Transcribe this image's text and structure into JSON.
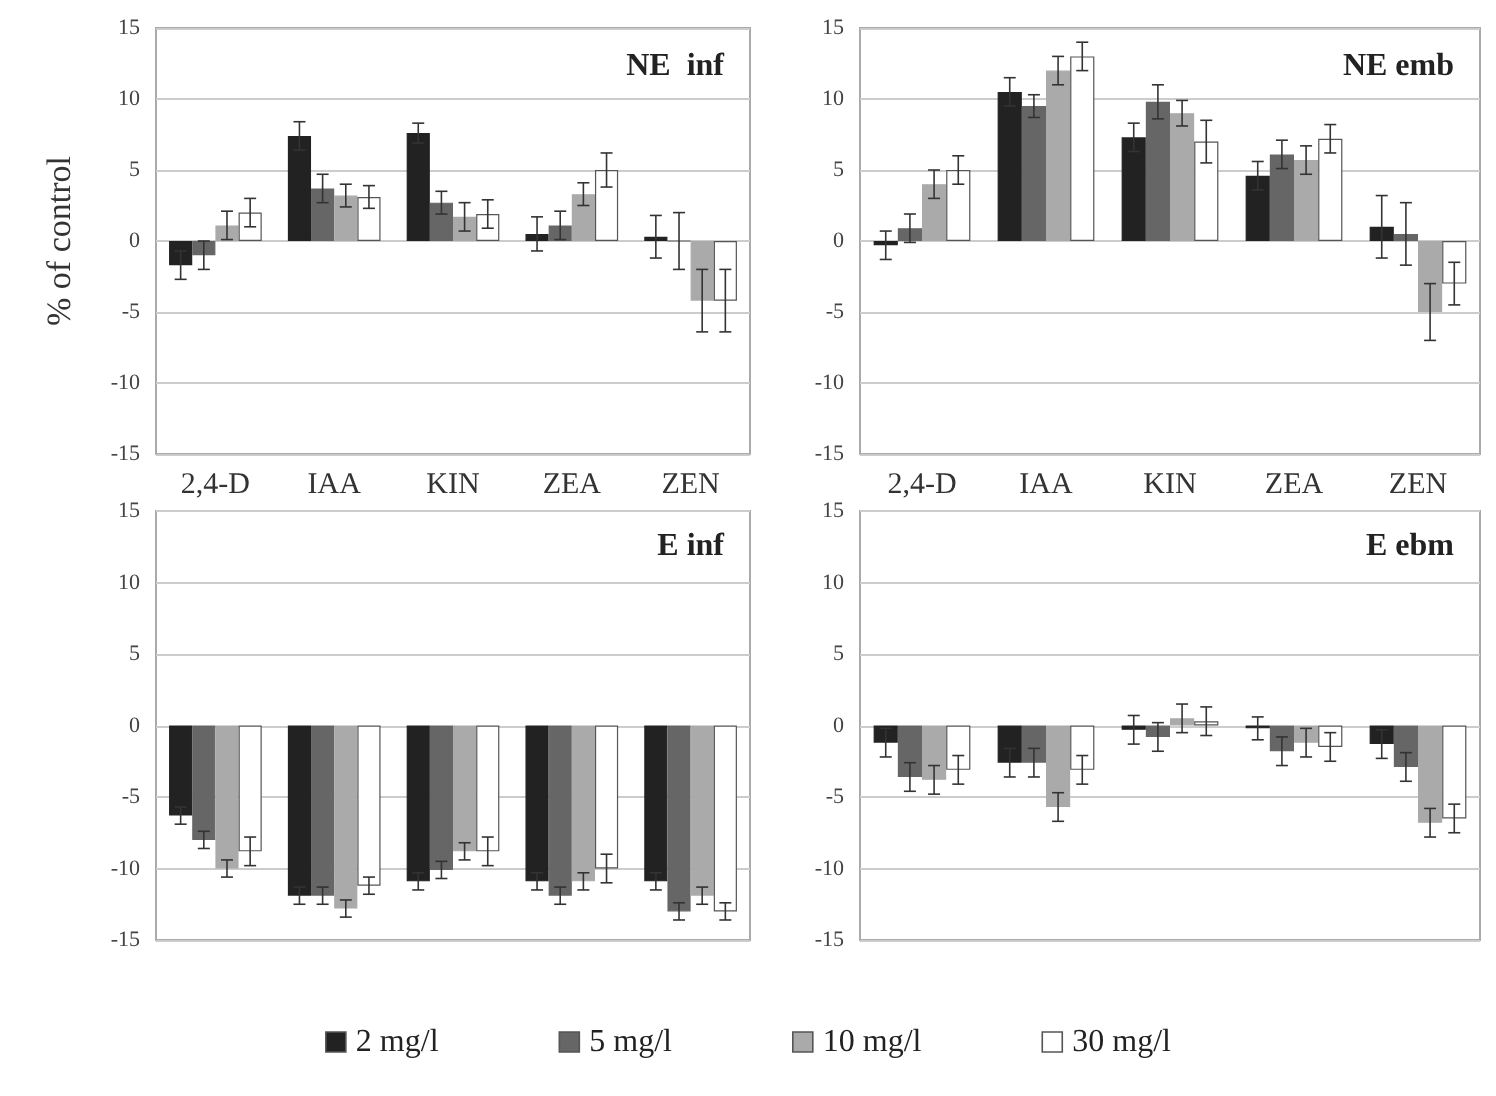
{
  "chart_data": [
    {
      "type": "bar",
      "title": "NE  inf",
      "ylabel": "% of control",
      "categories": [
        "2,4-D",
        "IAA",
        "KIN",
        "ZEA",
        "ZEN"
      ],
      "ylim": [
        -15,
        15
      ],
      "yticks": [
        -15,
        -10,
        -5,
        0,
        5,
        10,
        15
      ],
      "grid": "y",
      "series": [
        {
          "color": "#222222",
          "values": [
            -1.7,
            7.4,
            7.6,
            0.5,
            0.3
          ],
          "errors": [
            1,
            1,
            0.7,
            1.2,
            1.5
          ]
        },
        {
          "color": "#666666",
          "values": [
            -1,
            3.7,
            2.7,
            1.1,
            0
          ],
          "errors": [
            1,
            1,
            0.8,
            1,
            2
          ]
        },
        {
          "color": "#aaaaaa",
          "values": [
            1.1,
            3.2,
            1.7,
            3.3,
            -4.2
          ],
          "errors": [
            1,
            0.8,
            1,
            0.8,
            2.2
          ]
        },
        {
          "color": "#ffffff",
          "values": [
            2,
            3.1,
            1.9,
            5,
            -4.2
          ],
          "errors": [
            1,
            0.8,
            1,
            1.2,
            2.2
          ]
        }
      ]
    },
    {
      "type": "bar",
      "title": "NE emb",
      "categories": [
        "2,4-D",
        "IAA",
        "KIN",
        "ZEA",
        "ZEN"
      ],
      "ylim": [
        -15,
        15
      ],
      "yticks": [
        -15,
        -10,
        -5,
        0,
        5,
        10,
        15
      ],
      "grid": "y",
      "series": [
        {
          "color": "#222222",
          "values": [
            -0.3,
            10.5,
            7.3,
            4.6,
            1
          ],
          "errors": [
            1,
            1,
            1,
            1,
            2.2
          ]
        },
        {
          "color": "#666666",
          "values": [
            0.9,
            9.5,
            9.8,
            6.1,
            0.5
          ],
          "errors": [
            1,
            0.8,
            1.2,
            1,
            2.2
          ]
        },
        {
          "color": "#aaaaaa",
          "values": [
            4,
            12,
            9,
            5.7,
            -5
          ],
          "errors": [
            1,
            1,
            0.9,
            1,
            2
          ]
        },
        {
          "color": "#ffffff",
          "values": [
            5,
            13,
            7,
            7.2,
            -3
          ],
          "errors": [
            1,
            1,
            1.5,
            1,
            1.5
          ]
        }
      ]
    },
    {
      "type": "bar",
      "title": "E inf",
      "categories": [
        null,
        null,
        null,
        null,
        null
      ],
      "ylim": [
        -15,
        15
      ],
      "yticks": [
        -15,
        -10,
        -5,
        0,
        5,
        10,
        15
      ],
      "grid": "y",
      "tick_labels": "y",
      "legend": "bottom",
      "series": [
        {
          "name": "2 mg/l",
          "color": "#222222",
          "values": [
            -6.3,
            -11.9,
            -10.9,
            -10.9,
            -10.9
          ],
          "errors": [
            0.6,
            0.6,
            0.6,
            0.6,
            0.6
          ]
        },
        {
          "name": "5 mg/l",
          "color": "#666666",
          "values": [
            -8,
            -11.9,
            -10.1,
            -11.9,
            -13
          ],
          "errors": [
            0.6,
            0.6,
            0.6,
            0.6,
            0.6
          ]
        },
        {
          "name": "10 mg/l",
          "color": "#aaaaaa",
          "values": [
            -10,
            -12.8,
            -8.8,
            -10.9,
            -11.9
          ],
          "errors": [
            0.6,
            0.6,
            0.6,
            0.6,
            0.6
          ]
        },
        {
          "name": "30 mg/l",
          "color": "#ffffff",
          "values": [
            -8.8,
            -11.2,
            -8.8,
            -10,
            -13
          ],
          "errors": [
            1,
            0.6,
            1,
            1,
            0.6
          ]
        }
      ]
    },
    {
      "type": "bar",
      "title": "E ebm",
      "categories": [
        null,
        null,
        null,
        null,
        null
      ],
      "ylim": [
        -15,
        15
      ],
      "yticks": [
        -15,
        -10,
        -5,
        0,
        5,
        10,
        15
      ],
      "grid": "y",
      "tick_labels": "y",
      "series": [
        {
          "color": "#222222",
          "values": [
            -1.2,
            -2.6,
            -0.3,
            -0.2,
            -1.3
          ],
          "errors": [
            1,
            1,
            1,
            0.8,
            1
          ]
        },
        {
          "color": "#666666",
          "values": [
            -3.6,
            -2.6,
            -0.8,
            -1.8,
            -2.9
          ],
          "errors": [
            1,
            1,
            1,
            1,
            1
          ]
        },
        {
          "color": "#aaaaaa",
          "values": [
            -3.8,
            -5.7,
            0.5,
            -1.2,
            -6.8
          ],
          "errors": [
            1,
            1,
            1,
            1,
            1
          ]
        },
        {
          "color": "#ffffff",
          "values": [
            -3.1,
            -3.1,
            0.3,
            -1.5,
            -6.5
          ],
          "errors": [
            1,
            1,
            1,
            1,
            1
          ]
        }
      ]
    }
  ]
}
